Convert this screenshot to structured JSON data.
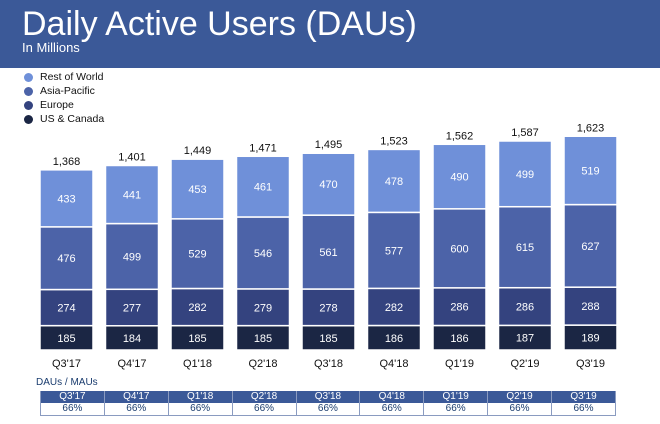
{
  "header": {
    "title": "Daily Active Users (DAUs)",
    "subtitle": "In Millions"
  },
  "colors": {
    "header_bg": "#3b5998",
    "rest_of_world": "#6f90d9",
    "asia_pacific": "#4c63a8",
    "europe": "#34437f",
    "us_canada": "#1b2644"
  },
  "chart_data": {
    "type": "bar",
    "stacked": true,
    "categories": [
      "Q3'17",
      "Q4'17",
      "Q1'18",
      "Q2'18",
      "Q3'18",
      "Q4'18",
      "Q1'19",
      "Q2'19",
      "Q3'19"
    ],
    "series": [
      {
        "name": "US & Canada",
        "values": [
          185,
          184,
          185,
          185,
          185,
          186,
          186,
          187,
          189
        ]
      },
      {
        "name": "Europe",
        "values": [
          274,
          277,
          282,
          279,
          278,
          282,
          286,
          286,
          288
        ]
      },
      {
        "name": "Asia-Pacific",
        "values": [
          476,
          499,
          529,
          546,
          561,
          577,
          600,
          615,
          627
        ]
      },
      {
        "name": "Rest of World",
        "values": [
          433,
          441,
          453,
          461,
          470,
          478,
          490,
          499,
          519
        ]
      }
    ],
    "totals": [
      "1,368",
      "1,401",
      "1,449",
      "1,471",
      "1,495",
      "1,523",
      "1,562",
      "1,587",
      "1,623"
    ],
    "title": "Daily Active Users (DAUs)",
    "subtitle": "In Millions",
    "legend": [
      "Rest of World",
      "Asia-Pacific",
      "Europe",
      "US & Canada"
    ],
    "legend_position": "top-left",
    "grid": false
  },
  "metrics": {
    "label": "DAUs / MAUs",
    "quarters": [
      "Q3'17",
      "Q4'17",
      "Q1'18",
      "Q2'18",
      "Q3'18",
      "Q4'18",
      "Q1'19",
      "Q2'19",
      "Q3'19"
    ],
    "values": [
      "66%",
      "66%",
      "66%",
      "66%",
      "66%",
      "66%",
      "66%",
      "66%",
      "66%"
    ]
  }
}
